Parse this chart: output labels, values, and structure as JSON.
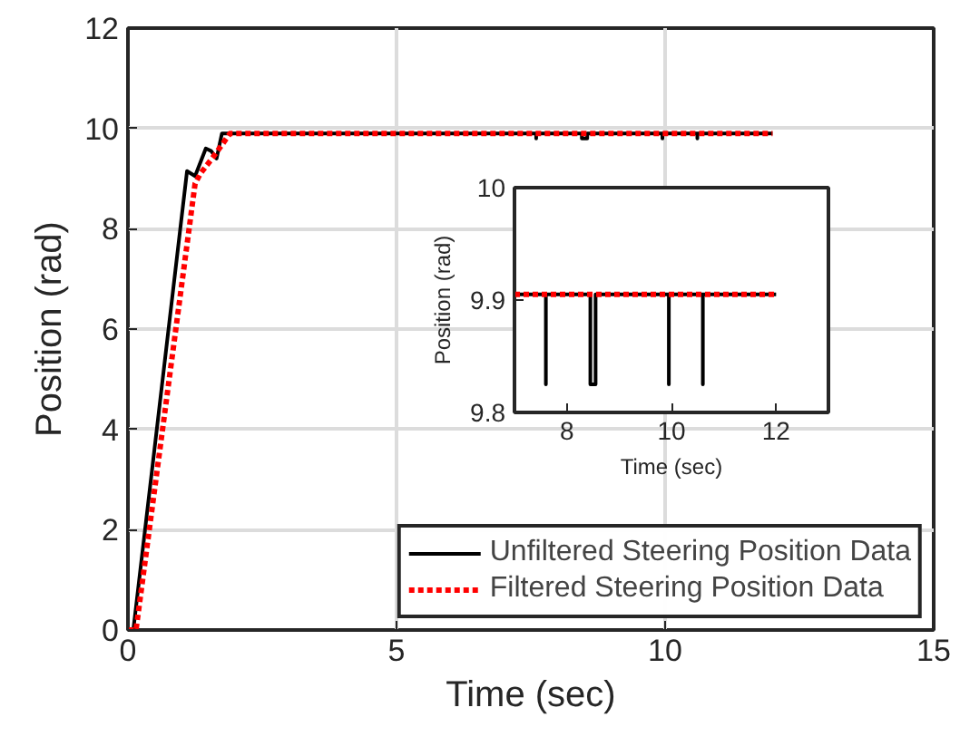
{
  "chart_data": [
    {
      "type": "line",
      "xlabel": "Time (sec)",
      "ylabel": "Position (rad)",
      "xlim": [
        0,
        15
      ],
      "xticks": [
        0,
        5,
        10,
        15
      ],
      "ylim": [
        0,
        12
      ],
      "yticks": [
        0,
        2,
        4,
        6,
        8,
        10,
        12
      ],
      "grid": true,
      "legend": "bottom right",
      "series": [
        {
          "name": "Unfiltered Steering Position Data",
          "color": "#000000",
          "line_style": "solid",
          "x": [
            0,
            0.1,
            1.1,
            1.25,
            1.45,
            1.55,
            1.65,
            1.75,
            7.6,
            7.6,
            7.6,
            8.45,
            8.45,
            8.55,
            8.55,
            9.95,
            9.95,
            9.95,
            10.6,
            10.6,
            10.6,
            12
          ],
          "values": [
            0,
            0,
            9.15,
            9.05,
            9.6,
            9.55,
            9.4,
            9.9,
            9.9,
            9.8,
            9.9,
            9.9,
            9.8,
            9.8,
            9.9,
            9.9,
            9.8,
            9.9,
            9.9,
            9.8,
            9.9,
            9.9
          ]
        },
        {
          "name": "Filtered Steering Position Data",
          "color": "#ff0000",
          "line_style": "dotted",
          "x": [
            0,
            0.15,
            1.25,
            1.35,
            1.6,
            1.9,
            12
          ],
          "values": [
            0,
            0,
            8.9,
            9.1,
            9.45,
            9.9,
            9.9
          ]
        }
      ]
    },
    {
      "type": "line",
      "xlabel": "Time (sec)",
      "ylabel": "Position (rad)",
      "xlim": [
        7,
        13
      ],
      "xticks": [
        8,
        10,
        12
      ],
      "ylim": [
        9.8,
        10
      ],
      "yticks": [
        9.8,
        9.9,
        10
      ],
      "grid": false,
      "legend": false,
      "series": [
        {
          "color": "#000000",
          "line_style": "solid",
          "x": [
            7,
            7.6,
            7.6,
            7.6,
            8.45,
            8.45,
            8.55,
            8.55,
            9.95,
            9.95,
            9.95,
            10.6,
            10.6,
            10.6,
            12
          ],
          "values": [
            9.905,
            9.905,
            9.825,
            9.905,
            9.905,
            9.825,
            9.825,
            9.905,
            9.905,
            9.825,
            9.905,
            9.905,
            9.825,
            9.905,
            9.905
          ]
        },
        {
          "color": "#ff0000",
          "line_style": "dotted",
          "x": [
            7,
            12
          ],
          "values": [
            9.905,
            9.905
          ]
        }
      ]
    }
  ]
}
